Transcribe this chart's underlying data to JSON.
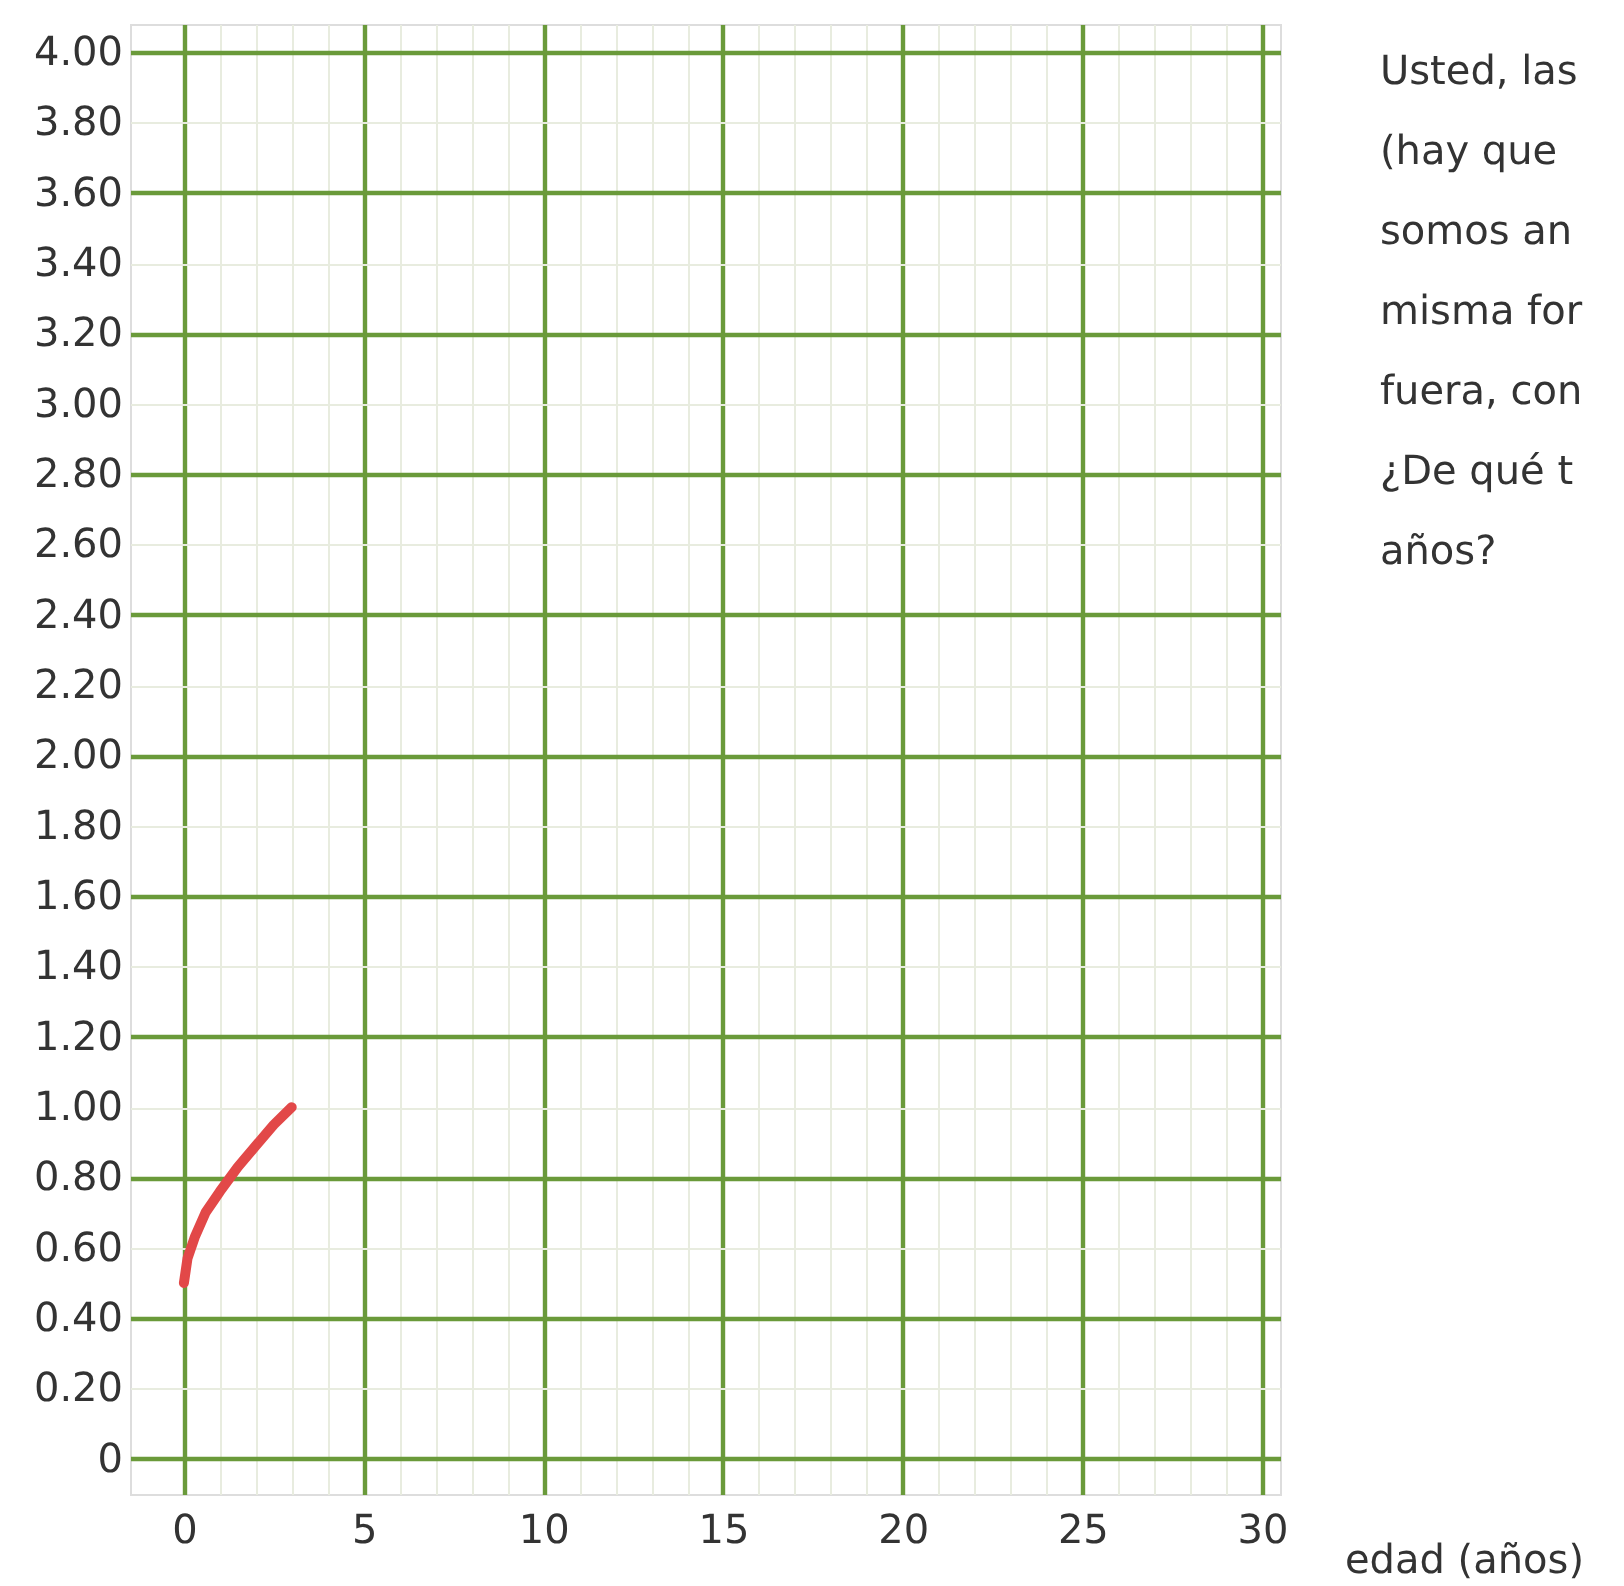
{
  "chart_data": {
    "type": "line",
    "xlabel": "edad (años)",
    "x": [
      0,
      0.1,
      0.3,
      0.6,
      1,
      1.5,
      2,
      2.5,
      3
    ],
    "series": [
      {
        "color": "#e24848",
        "values": [
          0.5,
          0.57,
          0.63,
          0.7,
          0.76,
          0.83,
          0.89,
          0.95,
          1.0
        ]
      }
    ],
    "xlim": [
      -1.5,
      30.5
    ],
    "ylim": [
      -0.1,
      4.08
    ],
    "xticks": [
      0,
      {
        "value": 1,
        "label": null
      },
      {
        "value": 2,
        "label": null
      },
      {
        "value": 3,
        "label": null
      },
      {
        "value": 4,
        "label": null
      },
      5,
      {
        "value": 6,
        "label": null
      },
      {
        "value": 7,
        "label": null
      },
      {
        "value": 8,
        "label": null
      },
      {
        "value": 9,
        "label": null
      },
      10,
      {
        "value": 11,
        "label": null
      },
      {
        "value": 12,
        "label": null
      },
      {
        "value": 13,
        "label": null
      },
      {
        "value": 14,
        "label": null
      },
      15,
      {
        "value": 16,
        "label": null
      },
      {
        "value": 17,
        "label": null
      },
      {
        "value": 18,
        "label": null
      },
      {
        "value": 19,
        "label": null
      },
      20,
      {
        "value": 21,
        "label": null
      },
      {
        "value": 22,
        "label": null
      },
      {
        "value": 23,
        "label": null
      },
      {
        "value": 24,
        "label": null
      },
      25,
      {
        "value": 26,
        "label": null
      },
      {
        "value": 27,
        "label": null
      },
      {
        "value": 28,
        "label": null
      },
      {
        "value": 29,
        "label": null
      },
      30
    ],
    "yticks": [
      0,
      {
        "value": 0.2,
        "label": "0.20"
      },
      {
        "value": 0.4,
        "label": "0.40"
      },
      {
        "value": 0.6,
        "label": "0.60"
      },
      {
        "value": 0.8,
        "label": "0.80"
      },
      {
        "value": 1,
        "label": "1.00"
      },
      {
        "value": 1.2,
        "label": "1.20"
      },
      {
        "value": 1.4,
        "label": "1.40"
      },
      {
        "value": 1.6,
        "label": "1.60"
      },
      {
        "value": 1.8,
        "label": "1.80"
      },
      {
        "value": 2,
        "label": "2.00"
      },
      {
        "value": 2.2,
        "label": "2.20"
      },
      {
        "value": 2.4,
        "label": "2.40"
      },
      {
        "value": 2.6,
        "label": "2.60"
      },
      {
        "value": 2.8,
        "label": "2.80"
      },
      {
        "value": 3,
        "label": "3.00"
      },
      {
        "value": 3.2,
        "label": "3.20"
      },
      {
        "value": 3.4,
        "label": "3.40"
      },
      {
        "value": 3.6,
        "label": "3.60"
      },
      {
        "value": 3.8,
        "label": "3.80"
      },
      {
        "value": 4,
        "label": "4.00"
      }
    ],
    "grid": true,
    "line_style": "solid",
    "marker": "none",
    "annotations": [
      "Usted, las",
      "(hay que",
      "somos an",
      "misma for",
      "fuera, con",
      "¿De qué t",
      "años?"
    ]
  }
}
